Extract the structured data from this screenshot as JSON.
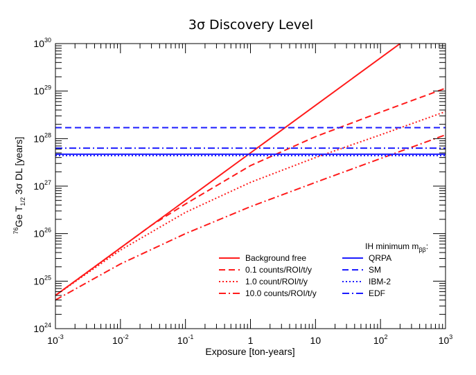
{
  "title": "3σ Discovery Level",
  "chart_data": {
    "type": "line",
    "title": "3σ Discovery Level",
    "xlabel": "Exposure [ton-years]",
    "ylabel": "76Ge T1/2 3σ DL [years]",
    "ylabel_parts": {
      "isotope_mass": "76",
      "element": "Ge T",
      "subscript": "1/2",
      "rest": " 3σ DL [years]"
    },
    "x_scale": "log",
    "y_scale": "log",
    "xlim": [
      0.001,
      1000
    ],
    "ylim": [
      1e+24,
      1e+30
    ],
    "x_ticks": [
      {
        "base": "10",
        "exp": "-3"
      },
      {
        "base": "10",
        "exp": "-2"
      },
      {
        "base": "10",
        "exp": "-1"
      },
      {
        "base": "1",
        "exp": ""
      },
      {
        "base": "10",
        "exp": ""
      },
      {
        "base": "10",
        "exp": "2"
      },
      {
        "base": "10",
        "exp": "3"
      }
    ],
    "y_ticks": [
      {
        "base": "10",
        "exp": "24"
      },
      {
        "base": "10",
        "exp": "25"
      },
      {
        "base": "10",
        "exp": "26"
      },
      {
        "base": "10",
        "exp": "27"
      },
      {
        "base": "10",
        "exp": "28"
      },
      {
        "base": "10",
        "exp": "29"
      },
      {
        "base": "10",
        "exp": "30"
      }
    ],
    "grid": false,
    "series": [
      {
        "name": "Background free",
        "color": "#ff1a1a",
        "dash": "solid",
        "x": [
          0.001,
          0.01,
          0.1,
          1,
          10,
          100,
          250
        ],
        "y": [
          5e+24,
          5e+25,
          5e+26,
          5e+27,
          5e+28,
          5e+29,
          1.25e+30
        ]
      },
      {
        "name": "0.1 counts/ROI/t/y",
        "color": "#ff1a1a",
        "dash": "dashed",
        "x": [
          0.001,
          0.01,
          0.03,
          0.1,
          1,
          10,
          100,
          1000
        ],
        "y": [
          5e+24,
          5e+25,
          1.5e+26,
          4.2e+26,
          2.7e+27,
          1.1e+28,
          3.6e+28,
          1.15e+29
        ]
      },
      {
        "name": "1.0 count/ROI/t/y",
        "color": "#ff1a1a",
        "dash": "dotted",
        "x": [
          0.001,
          0.01,
          0.1,
          1,
          10,
          100,
          1000
        ],
        "y": [
          5e+24,
          4.5e+25,
          2.8e+26,
          1.2e+27,
          4e+27,
          1.2e+28,
          3.7e+28
        ]
      },
      {
        "name": "10.0 counts/ROI/t/y",
        "color": "#ff1a1a",
        "dash": "dashdot",
        "x": [
          0.001,
          0.01,
          0.1,
          1,
          10,
          100,
          1000
        ],
        "y": [
          4e+24,
          2.3e+25,
          1e+26,
          3.7e+26,
          1.2e+27,
          3.8e+27,
          1.2e+28
        ]
      },
      {
        "name": "QRPA",
        "color": "#1a1aff",
        "dash": "solid",
        "horizontal": true,
        "x": [
          0.001,
          1000
        ],
        "y": [
          4.7e+27,
          4.7e+27
        ]
      },
      {
        "name": "SM",
        "color": "#1a1aff",
        "dash": "dashed",
        "horizontal": true,
        "x": [
          0.001,
          1000
        ],
        "y": [
          1.7e+28,
          1.7e+28
        ]
      },
      {
        "name": "IBM-2",
        "color": "#1a1aff",
        "dash": "dotted",
        "horizontal": true,
        "x": [
          0.001,
          1000
        ],
        "y": [
          4.4e+27,
          4.4e+27
        ]
      },
      {
        "name": "EDF",
        "color": "#1a1aff",
        "dash": "dashdot",
        "horizontal": true,
        "x": [
          0.001,
          1000
        ],
        "y": [
          6.3e+27,
          6.3e+27
        ]
      }
    ],
    "legend": {
      "placement": "bottom-right",
      "right_title": "IH minimum m",
      "right_title_sub": "ββ",
      "right_title_suffix": ":",
      "left_entries": [
        "Background free",
        "0.1 counts/ROI/t/y",
        "1.0 count/ROI/t/y",
        "10.0 counts/ROI/t/y"
      ],
      "right_entries": [
        "QRPA",
        "SM",
        "IBM-2",
        "EDF"
      ]
    }
  }
}
